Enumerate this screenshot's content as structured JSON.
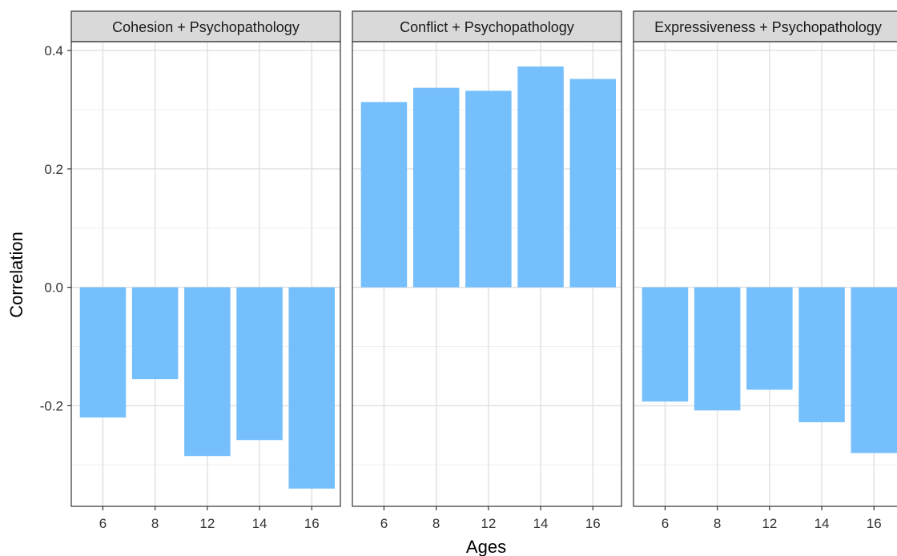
{
  "chart_data": {
    "type": "bar",
    "xlabel": "Ages",
    "ylabel": "Correlation",
    "ylim": [
      -0.37,
      0.415
    ],
    "yticks": [
      {
        "value": -0.2,
        "label": "-0.2"
      },
      {
        "value": 0.0,
        "label": "0.0"
      },
      {
        "value": 0.2,
        "label": "0.2"
      },
      {
        "value": 0.4,
        "label": "0.4"
      }
    ],
    "grid": true,
    "bar_color": "#74BFFC",
    "categories": [
      "6",
      "8",
      "12",
      "14",
      "16"
    ],
    "panels": [
      {
        "title": "Cohesion + Psychopathology",
        "values": [
          -0.22,
          -0.155,
          -0.285,
          -0.258,
          -0.34
        ]
      },
      {
        "title": "Conflict + Psychopathology",
        "values": [
          0.313,
          0.337,
          0.332,
          0.373,
          0.352
        ]
      },
      {
        "title": "Expressiveness + Psychopathology",
        "values": [
          -0.193,
          -0.208,
          -0.173,
          -0.228,
          -0.28
        ]
      }
    ]
  }
}
